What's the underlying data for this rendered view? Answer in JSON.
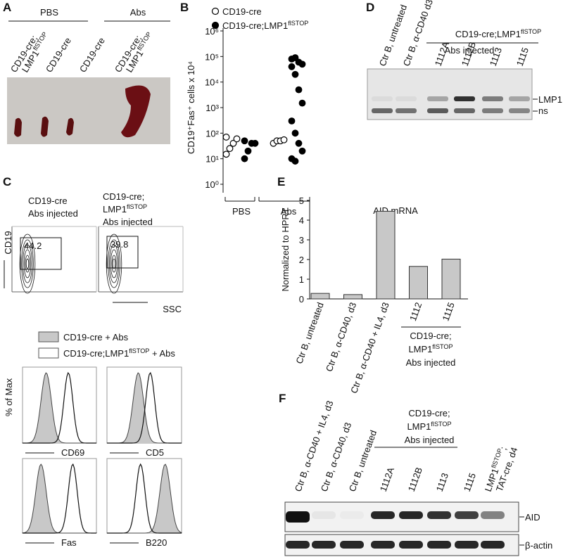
{
  "panel_labels": [
    "A",
    "B",
    "C",
    "D",
    "E",
    "F"
  ],
  "panel_a": {
    "groups": [
      "PBS",
      "Abs"
    ],
    "lanes": [
      [
        "CD19-cre;",
        [
          "LMP1",
          {
            "sup": "flSTOP"
          }
        ]
      ],
      [
        "CD19-cre"
      ],
      [
        "CD19-cre"
      ],
      [
        "CD19-cre;",
        [
          "LMP1",
          {
            "sup": "flSTOP"
          }
        ]
      ]
    ]
  },
  "chart_data": [
    {
      "type": "scatter",
      "y_label": "CD19⁺Fas⁺ cells x 10⁴",
      "categories": [
        "PBS",
        "Abs"
      ],
      "log_y": true,
      "ylim": [
        1,
        1000000
      ],
      "yticks": [
        {
          "value": 1,
          "label": "10⁰"
        },
        {
          "value": 10,
          "label": "10¹"
        },
        {
          "value": 100,
          "label": "10²"
        },
        {
          "value": 1000,
          "label": "10³"
        },
        {
          "value": 10000,
          "label": "10⁴"
        },
        {
          "value": 100000,
          "label": "10⁵"
        },
        {
          "value": 1000000,
          "label": "10⁶"
        }
      ],
      "series": [
        {
          "name": "CD19-cre",
          "marker": "open",
          "color": "#000000",
          "values": [
            [
              15,
              25,
              40,
              60,
              70
            ],
            [
              40,
              50,
              50,
              55
            ]
          ]
        },
        {
          "name": [
            "CD19-cre;LMP1",
            {
              "sup": "flSTOP"
            }
          ],
          "marker": "filled",
          "color": "#000000",
          "values": [
            [
              10,
              20,
              40,
              40,
              50
            ],
            [
              80000,
              90000,
              60000,
              50000,
              40000,
              20000,
              5000,
              1500,
              300,
              100,
              40,
              20,
              10,
              8
            ]
          ]
        }
      ]
    },
    {
      "type": "bar",
      "title": "AID mRNA",
      "y_label": "Normalized to HPRT",
      "categories": [
        "Ctr B, untreated",
        "Ctr B, α-CD40, d3",
        "Ctr B, α-CD40 + IL4, d3",
        "1112",
        "1115"
      ],
      "values": [
        0.28,
        0.22,
        4.45,
        1.65,
        2.02
      ],
      "color": "#c8c8c8",
      "ylim": [
        0,
        5
      ],
      "yticks": [
        0,
        1,
        2,
        3,
        4,
        5
      ],
      "group_label": [
        "CD19-cre;",
        [
          "LMP1",
          {
            "sup": "flSTOP"
          }
        ],
        "Abs injected"
      ]
    }
  ],
  "panel_c": {
    "plots": [
      {
        "title": [
          "CD19-cre",
          "Abs injected"
        ],
        "gate": 44.2
      },
      {
        "title": [
          "CD19-cre;",
          [
            "LMP1",
            {
              "sup": "flSTOP"
            }
          ],
          "Abs injected"
        ],
        "gate": 39.8
      }
    ],
    "y_axis": "CD19",
    "x_axis": "SSC",
    "legend": [
      "CD19-cre + Abs",
      [
        "CD19-cre;LMP1",
        {
          "sup": "flSTOP"
        },
        " + Abs"
      ]
    ],
    "histogram_y_axis": "% of Max",
    "markers": [
      "CD69",
      "CD5",
      "Fas",
      "B220"
    ]
  },
  "panel_d": {
    "lanes": [
      "Ctr B, untreated",
      "Ctr B, α-CD40 d3",
      "1112A",
      "1112B",
      "1113",
      "1115"
    ],
    "group": [
      [
        "CD19-cre;LMP1",
        {
          "sup": "flSTOP"
        }
      ],
      "Abs injected"
    ],
    "bands": [
      "LMP1",
      "ns"
    ]
  },
  "panel_f": {
    "lanes": [
      "Ctr B, α-CD40 + IL4, d3",
      "Ctr B, α-CD40, d3",
      "Ctr B, untreated",
      "1112A",
      "1112B",
      "1113",
      "1115",
      [
        "LMP1",
        {
          "sup": "flSTOP"
        },
        ";"
      ],
      "TAT-cre, d4"
    ],
    "group": [
      "CD19-cre;",
      [
        "LMP1",
        {
          "sup": "flSTOP"
        }
      ],
      "Abs injected"
    ],
    "bands": [
      "AID",
      "β-actin"
    ]
  }
}
